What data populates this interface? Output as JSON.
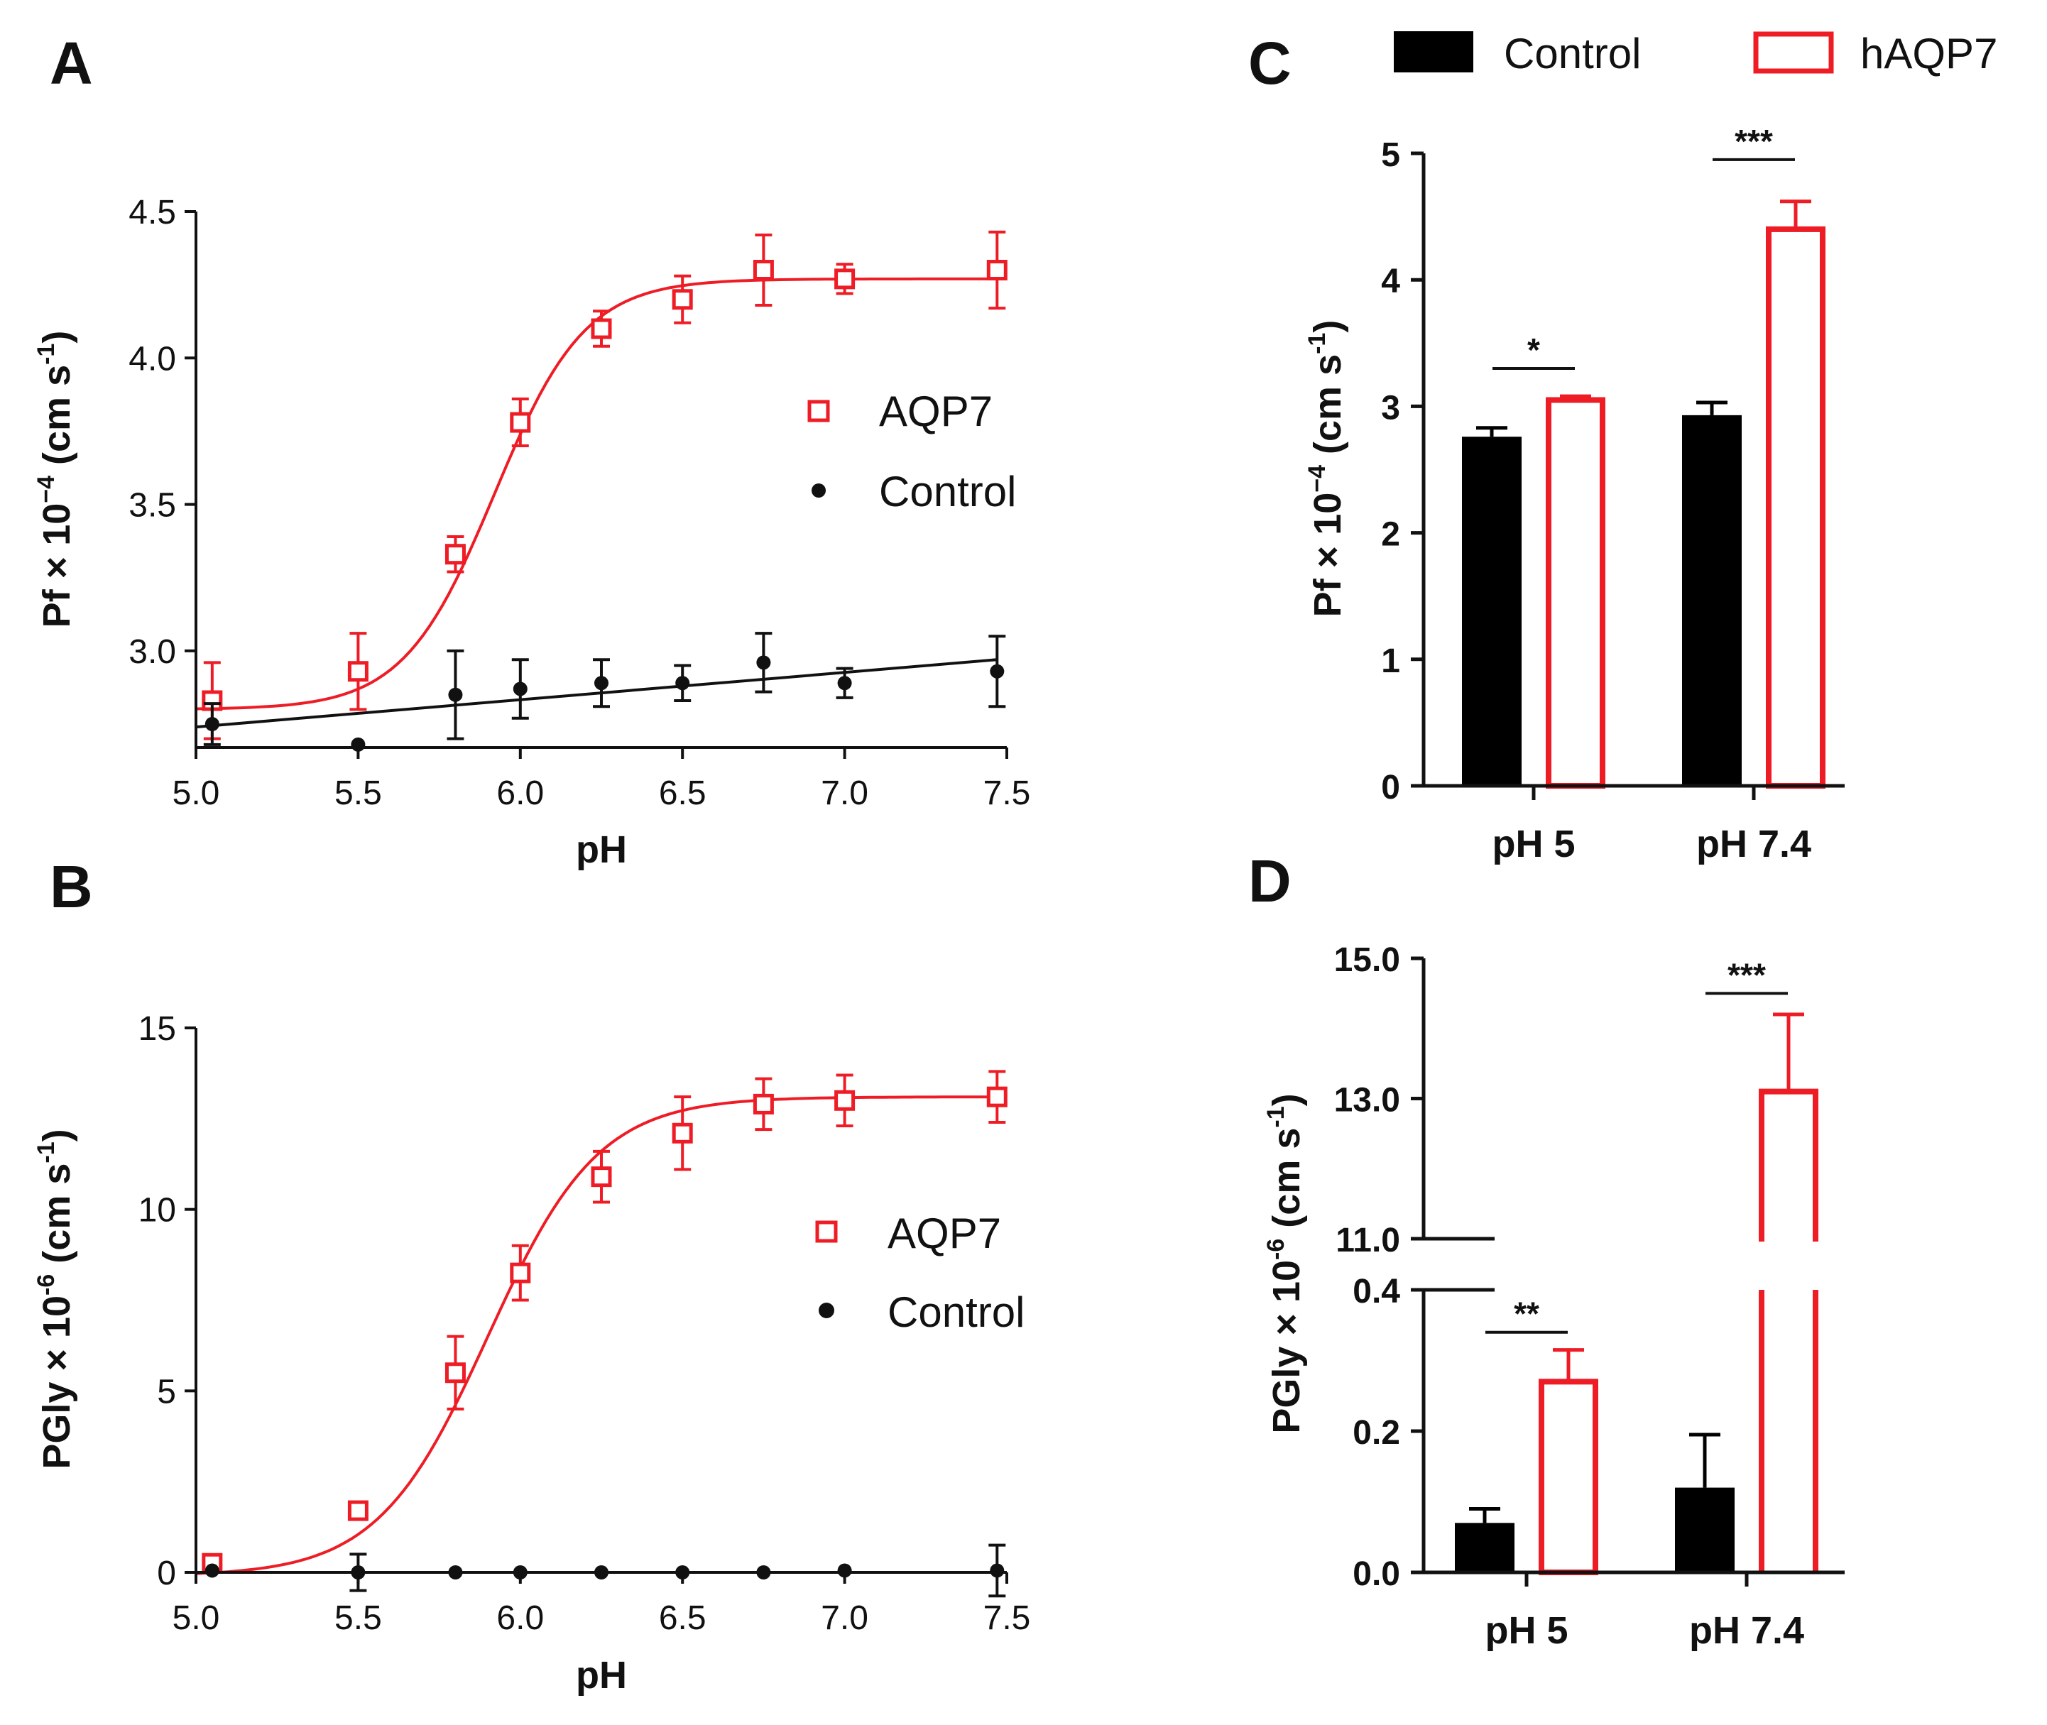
{
  "chart_data": [
    {
      "panel": "A",
      "type": "scatter",
      "xlabel": "pH",
      "ylabel_base": "Pf × 10",
      "ylabel_exp": "−4",
      "ylabel_unit_open": " (cm s",
      "ylabel_unit_exp": "-1",
      "ylabel_unit_close": ")",
      "xlim": [
        5.0,
        7.5
      ],
      "ylim": [
        2.67,
        4.5
      ],
      "xticks": [
        "5.0",
        "5.5",
        "6.0",
        "6.5",
        "7.0",
        "7.5"
      ],
      "yticks": [
        "3.0",
        "3.5",
        "4.0",
        "4.5"
      ],
      "legend": [
        "AQP7",
        "Control"
      ],
      "series": [
        {
          "name": "AQP7",
          "color": "#ee1c25",
          "marker": "open-square",
          "x": [
            5.05,
            5.5,
            5.8,
            6.0,
            6.25,
            6.5,
            6.75,
            7.0,
            7.47
          ],
          "y": [
            2.83,
            2.93,
            3.33,
            3.78,
            4.1,
            4.2,
            4.3,
            4.27,
            4.3
          ],
          "err": [
            0.13,
            0.13,
            0.06,
            0.08,
            0.06,
            0.08,
            0.12,
            0.05,
            0.13
          ],
          "fit": {
            "type": "sigmoid",
            "bottom": 2.8,
            "top": 4.27,
            "x50": 5.92,
            "slope": 0.14
          }
        },
        {
          "name": "Control",
          "color": "#111111",
          "marker": "filled-circle",
          "x": [
            5.05,
            5.5,
            5.8,
            6.0,
            6.25,
            6.5,
            6.75,
            7.0,
            7.47
          ],
          "y": [
            2.75,
            2.68,
            2.85,
            2.87,
            2.89,
            2.89,
            2.96,
            2.89,
            2.93
          ],
          "err": [
            0.07,
            0,
            0.15,
            0.1,
            0.08,
            0.06,
            0.1,
            0.05,
            0.12
          ],
          "fit": {
            "type": "linear",
            "x": [
              5.0,
              7.47
            ],
            "y": [
              2.74,
              2.97
            ]
          }
        }
      ]
    },
    {
      "panel": "B",
      "type": "scatter",
      "xlabel": "pH",
      "ylabel_base": "PGly × 10",
      "ylabel_exp": "-6",
      "ylabel_unit_open": " (cm s",
      "ylabel_unit_exp": "-1",
      "ylabel_unit_close": ")",
      "xlim": [
        5.0,
        7.5
      ],
      "ylim": [
        0,
        15
      ],
      "xticks": [
        "5.0",
        "5.5",
        "6.0",
        "6.5",
        "7.0",
        "7.5"
      ],
      "yticks": [
        "0",
        "5",
        "10",
        "15"
      ],
      "legend": [
        "AQP7",
        "Control"
      ],
      "series": [
        {
          "name": "AQP7",
          "color": "#ee1c25",
          "marker": "open-square",
          "x": [
            5.05,
            5.5,
            5.8,
            6.0,
            6.25,
            6.5,
            6.75,
            7.0,
            7.47
          ],
          "y": [
            0.25,
            1.7,
            5.5,
            8.25,
            10.9,
            12.1,
            12.9,
            13.0,
            13.1
          ],
          "err": [
            0,
            0,
            1.0,
            0.75,
            0.7,
            1.0,
            0.7,
            0.7,
            0.7
          ],
          "fit": {
            "type": "sigmoid",
            "bottom": -0.1,
            "top": 13.1,
            "x50": 5.9,
            "slope": 0.17
          }
        },
        {
          "name": "Control",
          "color": "#111111",
          "marker": "filled-circle",
          "x": [
            5.05,
            5.5,
            5.8,
            6.0,
            6.25,
            6.5,
            6.75,
            7.0,
            7.47
          ],
          "y": [
            0.05,
            0.0,
            0.0,
            0.0,
            0.0,
            0.0,
            0.0,
            0.05,
            0.05
          ],
          "err": [
            0,
            0.5,
            0,
            0,
            0,
            0,
            0,
            0,
            0.7
          ],
          "fit": {
            "type": "linear",
            "x": [
              5.0,
              7.47
            ],
            "y": [
              0.0,
              0.0
            ]
          }
        }
      ]
    },
    {
      "panel": "C",
      "type": "bar",
      "categories": [
        "pH 5",
        "pH 7.4"
      ],
      "ylabel_base": "Pf × 10",
      "ylabel_exp": "−4",
      "ylabel_unit_open": " (cm s",
      "ylabel_unit_exp": "-1",
      "ylabel_unit_close": ")",
      "ylim": [
        0,
        5
      ],
      "yticks": [
        "0",
        "1",
        "2",
        "3",
        "4",
        "5"
      ],
      "legend": [
        "Control",
        "hAQP7"
      ],
      "series": [
        {
          "name": "Control",
          "color": "#000000",
          "fill": "solid",
          "values": [
            2.76,
            2.93
          ],
          "err": [
            0.07,
            0.1
          ]
        },
        {
          "name": "hAQP7",
          "color": "#ee1c25",
          "fill": "open",
          "values": [
            3.05,
            4.4
          ],
          "err": [
            0.03,
            0.22
          ]
        }
      ],
      "significance": [
        "*",
        "***"
      ]
    },
    {
      "panel": "D",
      "type": "bar",
      "categories": [
        "pH 5",
        "pH 7.4"
      ],
      "ylabel_base": "PGly × 10",
      "ylabel_exp": "-6",
      "ylabel_unit_open": " (cm s",
      "ylabel_unit_exp": "-1",
      "ylabel_unit_close": ")",
      "broken_axis": {
        "lower": [
          0,
          0.4
        ],
        "upper": [
          11.0,
          15.0
        ]
      },
      "yticks_lower": [
        "0.0",
        "0.2",
        "0.4"
      ],
      "yticks_upper": [
        "11.0",
        "13.0",
        "15.0"
      ],
      "series": [
        {
          "name": "Control",
          "color": "#000000",
          "fill": "solid",
          "values": [
            0.07,
            0.12
          ],
          "err": [
            0.02,
            0.075
          ]
        },
        {
          "name": "hAQP7",
          "color": "#ee1c25",
          "fill": "open",
          "values": [
            0.27,
            13.1
          ],
          "err": [
            0.045,
            1.1
          ]
        }
      ],
      "significance": [
        "**",
        "***"
      ]
    }
  ],
  "panel_letters": [
    "A",
    "B",
    "C",
    "D"
  ]
}
